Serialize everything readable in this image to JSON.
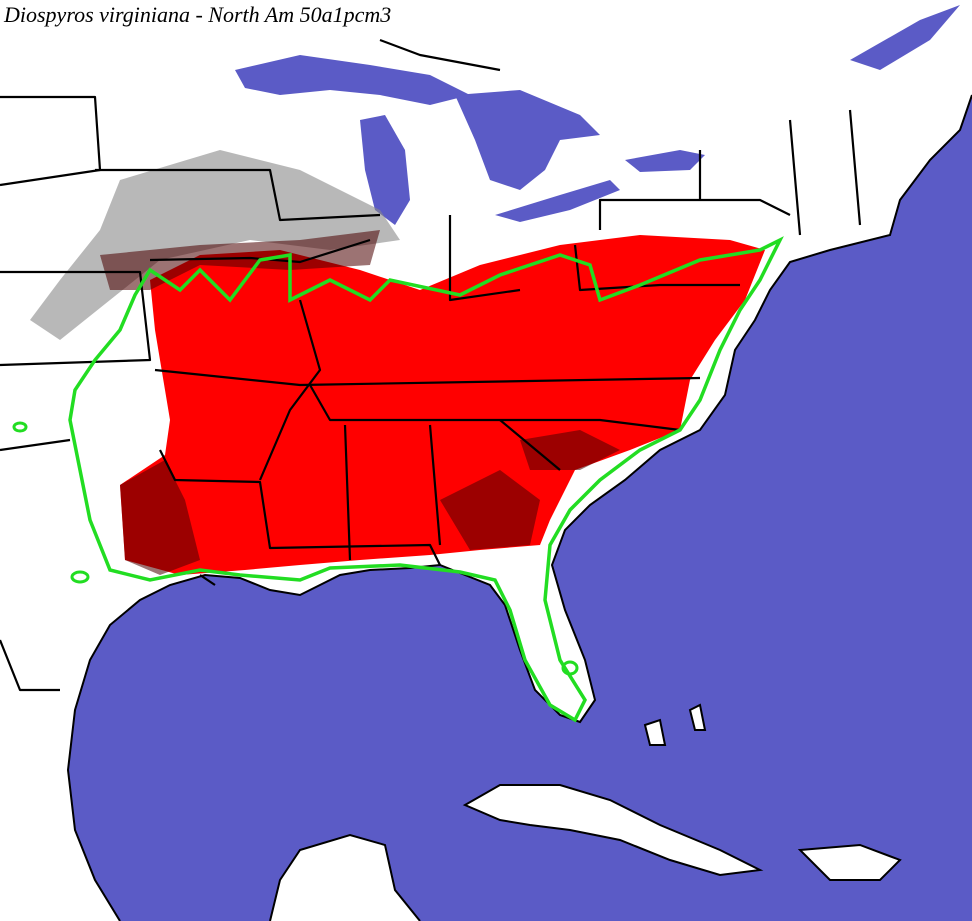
{
  "title": "Diospyros virginiana - North Am 50a1pcm3"
}
